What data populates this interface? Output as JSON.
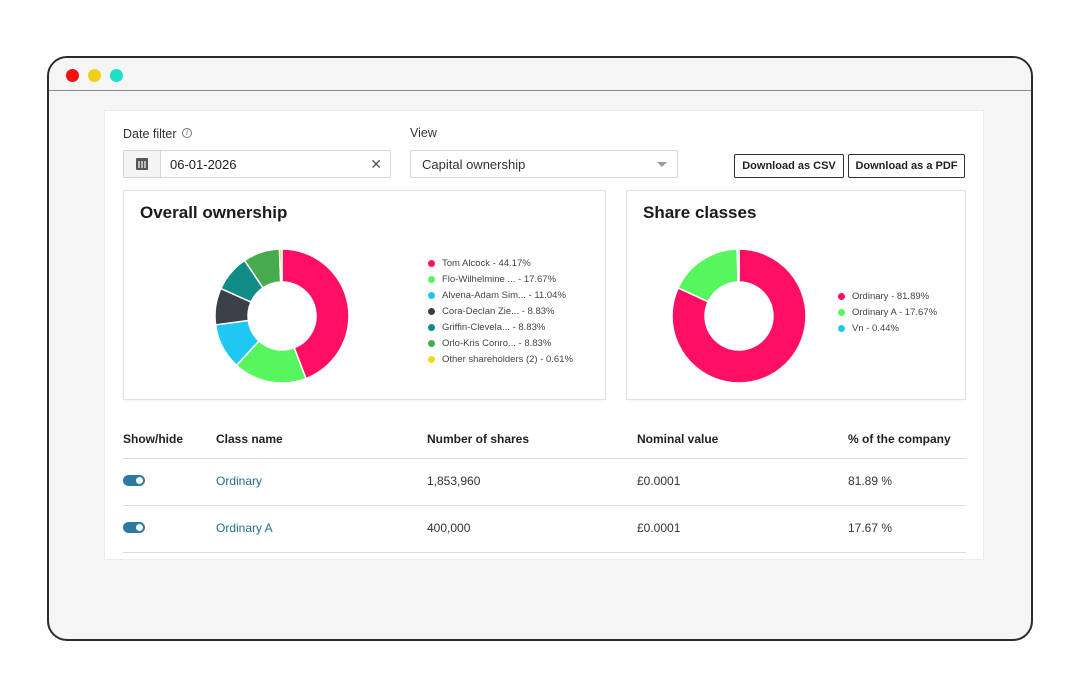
{
  "filters": {
    "date_label": "Date filter",
    "info_glyph": "i",
    "date_value": "06-01-2026",
    "clear_glyph": "✕",
    "view_label": "View",
    "view_value": "Capital ownership"
  },
  "actions": {
    "download_csv": "Download as CSV",
    "download_pdf": "Download as a PDF"
  },
  "overall_ownership": {
    "title": "Overall ownership",
    "chart_data": {
      "type": "pie",
      "donut": true,
      "title": "Overall ownership",
      "legend_position": "right",
      "slices": [
        {
          "label": "Tom Alcock - 44.17%",
          "value": 44.17,
          "color": "#ff0f64"
        },
        {
          "label": "Flo-Wilhelmine ... - 17.67%",
          "value": 17.67,
          "color": "#57f55e"
        },
        {
          "label": "Alvena-Adam Sim... - 11.04%",
          "value": 11.04,
          "color": "#1fc8f2"
        },
        {
          "label": "Cora-Declan Zie... - 8.83%",
          "value": 8.83,
          "color": "#3b3f48"
        },
        {
          "label": "Griffin-Clevela... - 8.83%",
          "value": 8.83,
          "color": "#0f8c86"
        },
        {
          "label": "Orlo-Kris Conro... - 8.83%",
          "value": 8.83,
          "color": "#47aa4c"
        },
        {
          "label": "Other shareholders (2) - 0.61%",
          "value": 0.61,
          "color": "#f5d71a"
        }
      ]
    }
  },
  "share_classes": {
    "title": "Share classes",
    "chart_data": {
      "type": "pie",
      "donut": true,
      "title": "Share classes",
      "legend_position": "right",
      "slices": [
        {
          "label": "Ordinary - 81.89%",
          "value": 81.89,
          "color": "#ff0f64"
        },
        {
          "label": "Ordinary A - 17.67%",
          "value": 17.67,
          "color": "#57f55e"
        },
        {
          "label": "Vn - 0.44%",
          "value": 0.44,
          "color": "#1fc8f2"
        }
      ]
    }
  },
  "table": {
    "headers": [
      "Show/hide",
      "Class name",
      "Number of shares",
      "Nominal value",
      "% of the company"
    ],
    "rows": [
      {
        "class_name": "Ordinary",
        "shares": "1,853,960",
        "nominal": "£0.0001",
        "percent": "81.89 %",
        "visible": true
      },
      {
        "class_name": "Ordinary A",
        "shares": "400,000",
        "nominal": "£0.0001",
        "percent": "17.67 %",
        "visible": true
      }
    ]
  }
}
